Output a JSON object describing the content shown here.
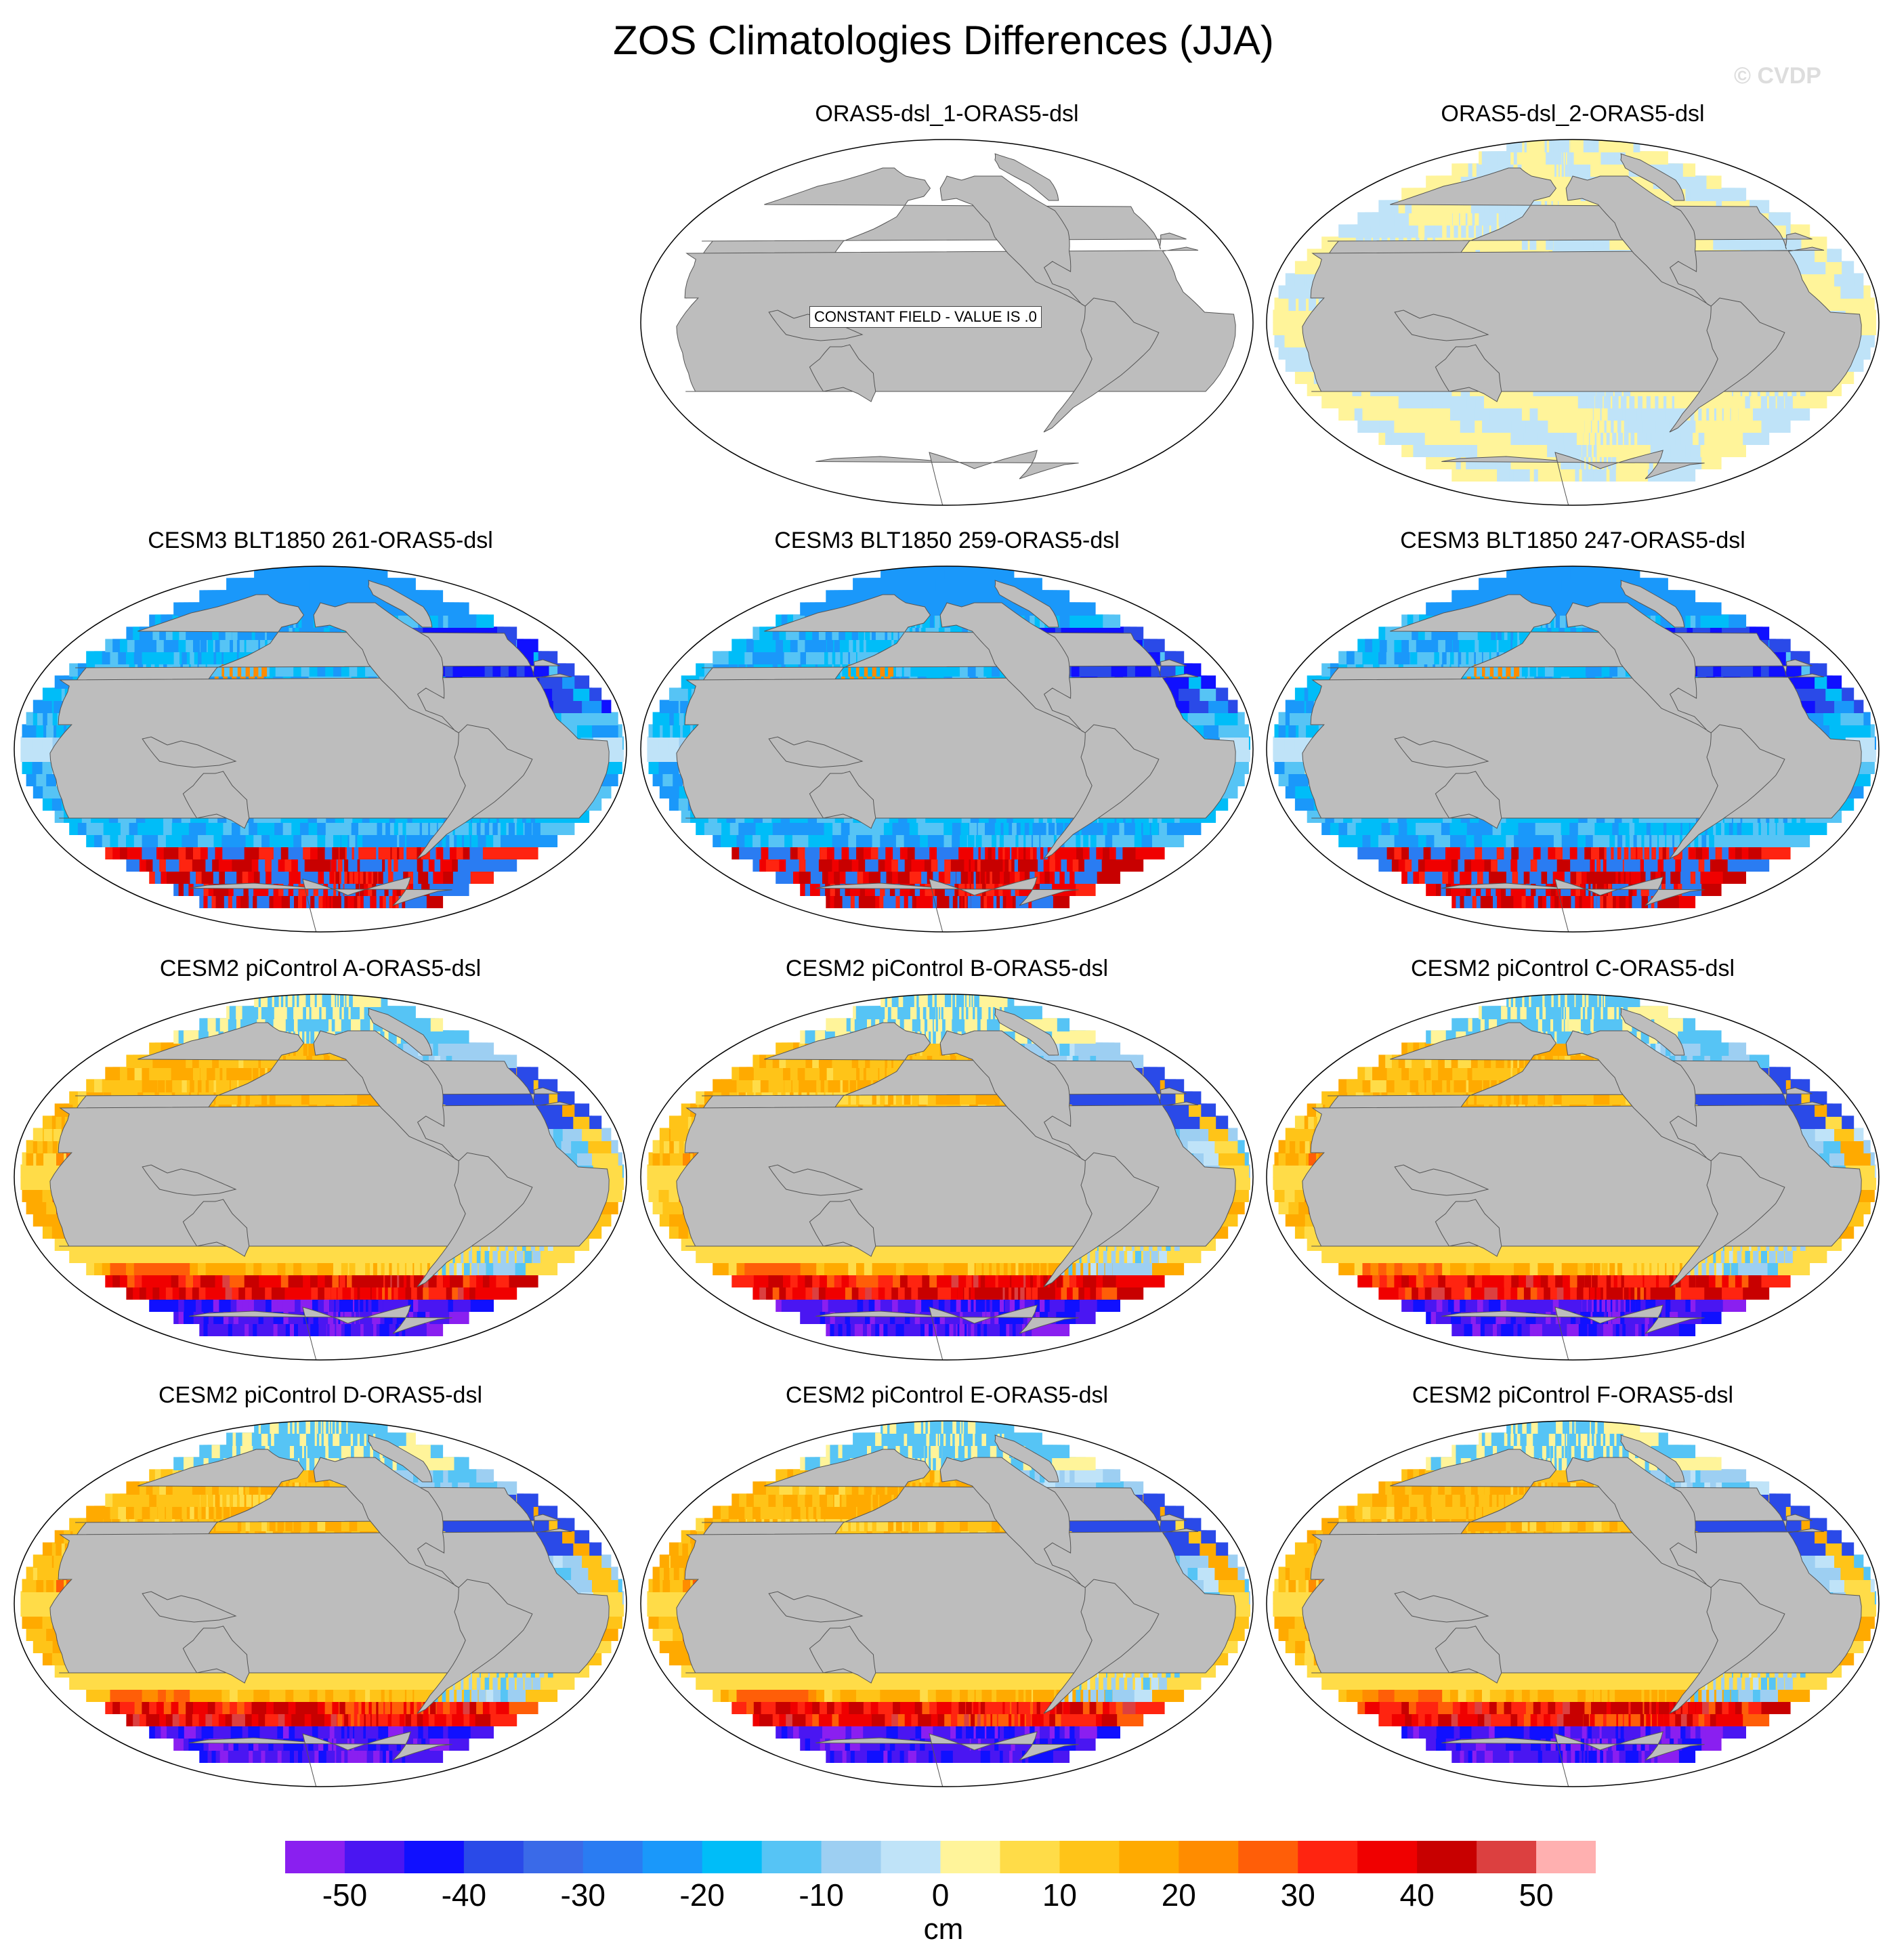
{
  "title": "ZOS Climatologies Differences (JJA)",
  "watermark": "© CVDP",
  "panels": [
    {
      "title": "ORAS5-dsl_1-ORAS5-dsl",
      "pattern": "constant",
      "note": "CONSTANT FIELD - VALUE IS .0"
    },
    {
      "title": "ORAS5-dsl_2-ORAS5-dsl",
      "pattern": "near-zero"
    },
    {
      "title": "CESM3 BLT1850 261-ORAS5-dsl",
      "pattern": "cesm3"
    },
    {
      "title": "CESM3 BLT1850 259-ORAS5-dsl",
      "pattern": "cesm3"
    },
    {
      "title": "CESM3 BLT1850 247-ORAS5-dsl",
      "pattern": "cesm3"
    },
    {
      "title": "CESM2 piControl A-ORAS5-dsl",
      "pattern": "cesm2"
    },
    {
      "title": "CESM2 piControl B-ORAS5-dsl",
      "pattern": "cesm2"
    },
    {
      "title": "CESM2 piControl C-ORAS5-dsl",
      "pattern": "cesm2"
    },
    {
      "title": "CESM2 piControl D-ORAS5-dsl",
      "pattern": "cesm2"
    },
    {
      "title": "CESM2 piControl E-ORAS5-dsl",
      "pattern": "cesm2"
    },
    {
      "title": "CESM2 piControl F-ORAS5-dsl",
      "pattern": "cesm2"
    }
  ],
  "colorbar": {
    "unit": "cm",
    "levels": [
      -55,
      -50,
      -45,
      -40,
      -35,
      -30,
      -25,
      -20,
      -15,
      -10,
      -5,
      0,
      5,
      10,
      15,
      20,
      25,
      30,
      35,
      40,
      45,
      50,
      55
    ],
    "colors": [
      "#8a1ff0",
      "#4a16f2",
      "#1010ff",
      "#2a4ae8",
      "#3a6ae8",
      "#2a7cf2",
      "#1a98fa",
      "#00bdf8",
      "#56c4f5",
      "#9dcff2",
      "#bfe3f8",
      "#fff49a",
      "#ffdc48",
      "#ffc418",
      "#ffaa00",
      "#ff8c00",
      "#ff5e08",
      "#ff2410",
      "#f00000",
      "#c80000",
      "#dc4040",
      "#ffb0b0"
    ],
    "tick_labels": [
      "-50",
      "-40",
      "-30",
      "-20",
      "-10",
      "0",
      "10",
      "20",
      "30",
      "40",
      "50"
    ]
  }
}
